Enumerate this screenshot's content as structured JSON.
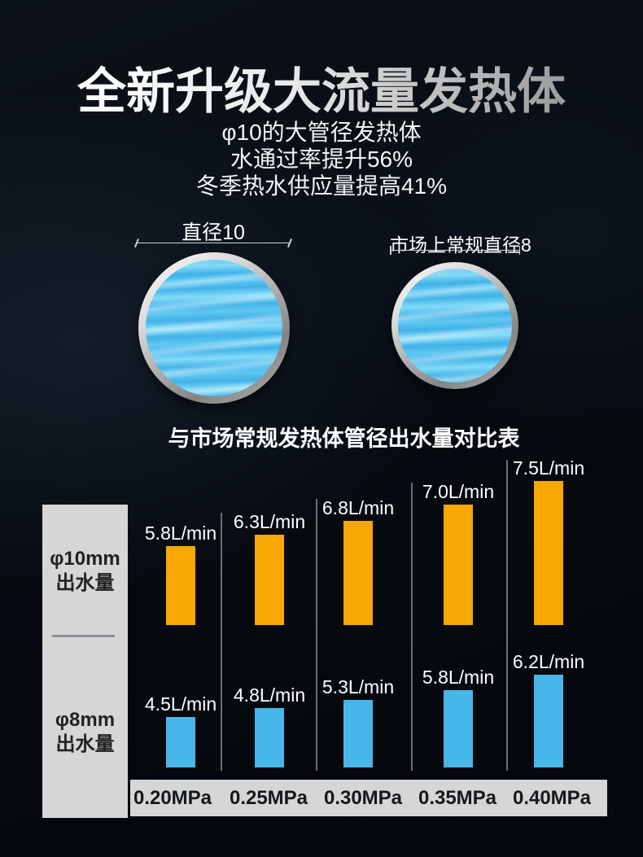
{
  "header": {
    "title": "全新升级大流量发热体",
    "subtitle_lines": [
      "φ10的大管径发热体",
      "水通过率提升56%",
      "冬季热水供应量提高41%"
    ]
  },
  "tubes": {
    "large": {
      "label": "直径10"
    },
    "small": {
      "label": "市场上常规直径8"
    }
  },
  "chart_data": {
    "type": "bar",
    "title": "与市场常规发热体管径出水量对比表",
    "categories": [
      "0.20MPa",
      "0.25MPa",
      "0.30MPa",
      "0.35MPa",
      "0.40MPa"
    ],
    "unit": "L/min",
    "grid": false,
    "legend_position": "left-row-labels",
    "series": [
      {
        "name": "φ10mm出水量",
        "row_label_lines": [
          "φ10mm",
          "出水量"
        ],
        "values": [
          5.8,
          6.3,
          6.8,
          7.0,
          7.5
        ],
        "color": "#f7a701"
      },
      {
        "name": "φ8mm出水量",
        "row_label_lines": [
          "φ8mm",
          "出水量"
        ],
        "values": [
          4.5,
          4.8,
          5.3,
          5.8,
          6.2
        ],
        "color": "#47b6e9"
      }
    ]
  },
  "colors": {
    "bar_orange": "#f7a701",
    "bar_blue": "#47b6e9",
    "panel_gray": "#d6d6d6",
    "background": "#06090e"
  }
}
